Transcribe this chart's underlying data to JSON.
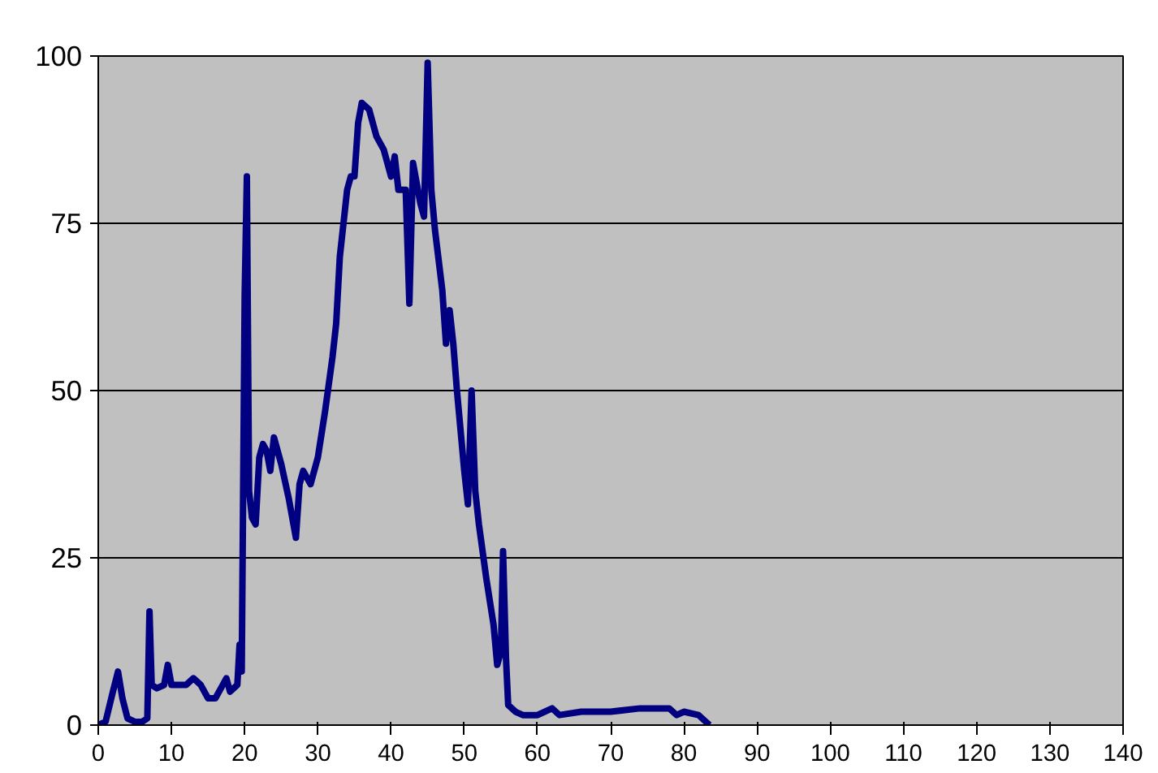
{
  "chart_data": {
    "type": "line",
    "x": [
      0,
      1,
      2,
      2.7,
      3.3,
      4,
      5,
      6,
      6.7,
      7,
      7.3,
      8,
      9,
      9.5,
      10,
      11,
      12,
      13,
      14,
      15,
      16,
      17,
      17.5,
      18,
      19,
      19.3,
      19.6,
      20,
      20.3,
      20.6,
      21,
      21.5,
      22,
      22.5,
      23,
      23.5,
      24,
      25,
      26,
      27,
      27.5,
      28,
      29,
      30,
      31,
      32,
      32.5,
      33,
      34,
      34.5,
      35,
      35.5,
      36,
      37,
      38,
      39,
      40,
      40.5,
      41,
      42,
      42.5,
      43,
      44,
      44.5,
      45,
      45.5,
      46,
      47,
      47.5,
      48,
      48.5,
      49,
      50,
      50.5,
      51,
      51.5,
      52,
      53,
      54,
      54.5,
      55,
      55.3,
      55.7,
      56,
      57,
      58,
      60,
      62,
      63,
      66,
      70,
      74,
      78,
      79,
      80,
      82,
      83,
      83.5
    ],
    "series": [
      {
        "color": "#000080",
        "values": [
          0,
          0.5,
          5,
          8,
          4,
          1,
          0.5,
          0.5,
          1,
          17,
          6,
          5.5,
          6,
          9,
          6,
          6,
          6,
          7,
          6,
          4,
          4,
          6,
          7,
          5,
          6,
          12,
          8,
          64,
          82,
          35,
          31,
          30,
          40,
          42,
          41,
          38,
          43,
          39,
          34,
          28,
          36,
          38,
          36,
          40,
          47,
          55,
          60,
          70,
          80,
          82,
          82,
          90,
          93,
          92,
          88,
          86,
          82,
          85,
          80,
          80,
          63,
          84,
          78,
          76,
          99,
          80,
          74,
          65,
          57,
          62,
          57,
          50,
          38,
          33,
          50,
          35,
          30,
          22,
          15,
          9,
          11,
          26,
          10,
          3,
          2,
          1.5,
          1.5,
          2.5,
          1.5,
          2,
          2,
          2.5,
          2.5,
          1.5,
          2,
          1.5,
          0.5,
          0
        ]
      }
    ],
    "xlim": [
      0,
      140
    ],
    "xticks": [
      0,
      10,
      20,
      30,
      40,
      50,
      60,
      70,
      80,
      90,
      100,
      110,
      120,
      130,
      140
    ],
    "ylim": [
      0,
      100
    ],
    "yticks": [
      0,
      25,
      50,
      75,
      100
    ],
    "grid": "y",
    "marker": "none",
    "line_style": "solid"
  }
}
